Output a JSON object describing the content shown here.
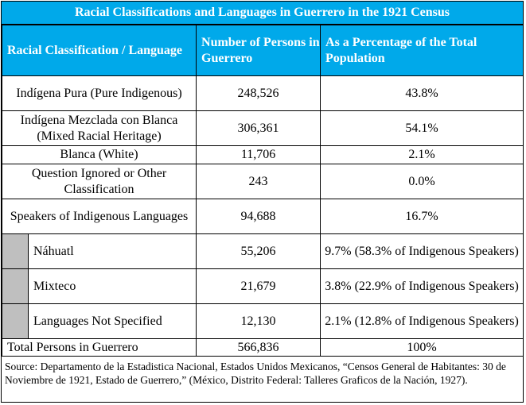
{
  "title": "Racial Classifications and Languages in Guerrero in the 1921 Census",
  "headers": {
    "col1": "Racial Classification / Language",
    "col2": "Number of Persons in Guerrero",
    "col3": "As a Percentage of the Total Population"
  },
  "rows": [
    {
      "label": "Indígena Pura (Pure Indigenous)",
      "number": "248,526",
      "percent": "43.8%"
    },
    {
      "label": "Indígena Mezclada con Blanca (Mixed Racial Heritage)",
      "number": "306,361",
      "percent": "54.1%"
    },
    {
      "label": "Blanca (White)",
      "number": "11,706",
      "percent": "2.1%"
    },
    {
      "label": "Question Ignored or Other Classification",
      "number": "243",
      "percent": "0.0%"
    },
    {
      "label": "Speakers of Indigenous Languages",
      "number": "94,688",
      "percent": "16.7%"
    }
  ],
  "subrows": [
    {
      "label": "Náhuatl",
      "number": "55,206",
      "percent": "9.7% (58.3% of Indigenous Speakers)"
    },
    {
      "label": "Mixteco",
      "number": "21,679",
      "percent": "3.8% (22.9% of Indigenous Speakers)"
    },
    {
      "label": "Languages Not Specified",
      "number": "12,130",
      "percent": "2.1% (12.8% of Indigenous Speakers)"
    }
  ],
  "total": {
    "label": "Total Persons in Guerrero",
    "number": "566,836",
    "percent": "100%"
  },
  "source": "Source: Departamento de la Estadistica Nacional, Estados Unidos Mexicanos, “Censos General de Habitantes: 30 de Noviembre de 1921, Estado de Guerrero,” (México, Distrito Federal: Talleres Graficos de la Nación, 1927)."
}
